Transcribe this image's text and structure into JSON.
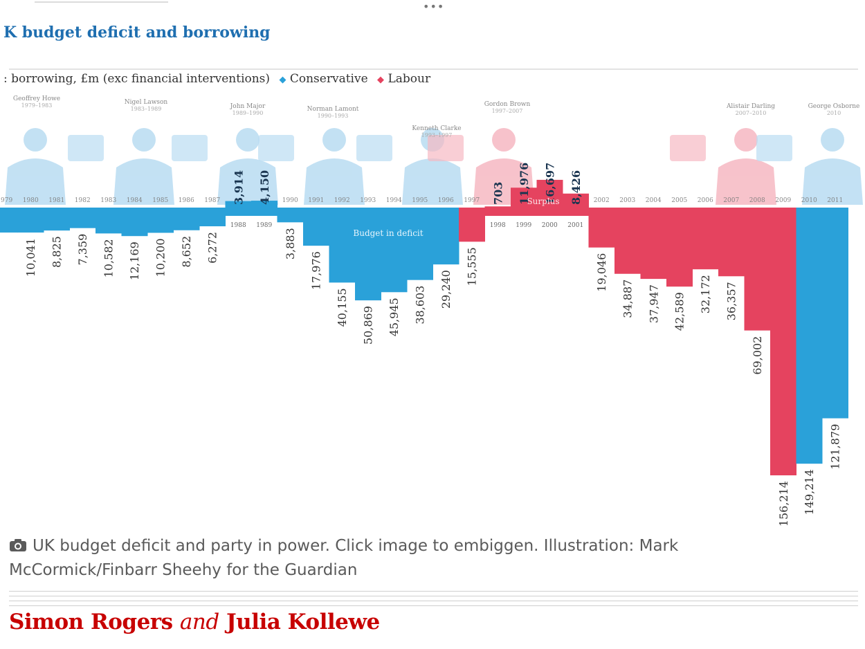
{
  "chart_data": {
    "type": "bar",
    "title": "K budget deficit and borrowing",
    "subtitle": ": borrowing, £m (exc financial interventions)",
    "legend": [
      {
        "name": "Conservative",
        "color": "#2aa1d9"
      },
      {
        "name": "Labour",
        "color": "#e5435f"
      }
    ],
    "annotations": [
      "Budget in deficit",
      "Surplus"
    ],
    "ministers": [
      {
        "name": "Geoffrey Howe",
        "years": "1979–1983"
      },
      {
        "name": "Nigel Lawson",
        "years": "1983–1989"
      },
      {
        "name": "John Major",
        "years": "1989–1990"
      },
      {
        "name": "Norman Lamont",
        "years": "1990–1993"
      },
      {
        "name": "Kenneth Clarke",
        "years": "1993–1997"
      },
      {
        "name": "Gordon Brown",
        "years": "1997–2007"
      },
      {
        "name": "Alistair Darling",
        "years": "2007–2010"
      },
      {
        "name": "George Osborne",
        "years": "2010"
      }
    ],
    "bars": [
      {
        "year": "1979",
        "value": -10041,
        "party": "Conservative"
      },
      {
        "year": "1980",
        "value": -10041,
        "label": "10,041",
        "party": "Conservative"
      },
      {
        "year": "1981",
        "value": -8825,
        "label": "8,825",
        "party": "Conservative"
      },
      {
        "year": "1982",
        "value": -7359,
        "label": "7,359",
        "party": "Conservative"
      },
      {
        "year": "1983",
        "value": -10582,
        "label": "10,582",
        "party": "Conservative"
      },
      {
        "year": "1984",
        "value": -12169,
        "label": "12,169",
        "party": "Conservative"
      },
      {
        "year": "1985",
        "value": -10200,
        "label": "10,200",
        "party": "Conservative"
      },
      {
        "year": "1986",
        "value": -8652,
        "label": "8,652",
        "party": "Conservative"
      },
      {
        "year": "1987",
        "value": -6272,
        "label": "6,272",
        "party": "Conservative"
      },
      {
        "year": "1988",
        "value": 3914,
        "label": "3,914",
        "party": "Conservative"
      },
      {
        "year": "1989",
        "value": 4150,
        "label": "4,150",
        "party": "Conservative"
      },
      {
        "year": "1990",
        "value": -3883,
        "label": "3,883",
        "party": "Conservative"
      },
      {
        "year": "1991",
        "value": -17976,
        "label": "17,976",
        "party": "Conservative"
      },
      {
        "year": "1992",
        "value": -40155,
        "label": "40,155",
        "party": "Conservative"
      },
      {
        "year": "1993",
        "value": -50869,
        "label": "50,869",
        "party": "Conservative"
      },
      {
        "year": "1994",
        "value": -45945,
        "label": "45,945",
        "party": "Conservative"
      },
      {
        "year": "1995",
        "value": -38603,
        "label": "38,603",
        "party": "Conservative"
      },
      {
        "year": "1996",
        "value": -29240,
        "label": "29,240",
        "party": "Conservative"
      },
      {
        "year": "1997",
        "value": -15555,
        "label": "15,555",
        "party": "Labour"
      },
      {
        "year": "1998",
        "value": 703,
        "label": "703",
        "party": "Labour"
      },
      {
        "year": "1999",
        "value": 11976,
        "label": "11,976",
        "party": "Labour"
      },
      {
        "year": "2000",
        "value": 16697,
        "label": "16,697",
        "party": "Labour"
      },
      {
        "year": "2001",
        "value": 8426,
        "label": "8,426",
        "party": "Labour"
      },
      {
        "year": "2002",
        "value": -19046,
        "label": "19,046",
        "party": "Labour"
      },
      {
        "year": "2003",
        "value": -34887,
        "label": "34,887",
        "party": "Labour"
      },
      {
        "year": "2004",
        "value": -37947,
        "label": "37,947",
        "party": "Labour"
      },
      {
        "year": "2005",
        "value": -42589,
        "label": "42,589",
        "party": "Labour"
      },
      {
        "year": "2006",
        "value": -32172,
        "label": "32,172",
        "party": "Labour"
      },
      {
        "year": "2007",
        "value": -36357,
        "label": "36,357",
        "party": "Labour"
      },
      {
        "year": "2008",
        "value": -69002,
        "label": "69,002",
        "party": "Labour"
      },
      {
        "year": "2009",
        "value": -156214,
        "label": "156,214",
        "party": "Labour"
      },
      {
        "year": "2010",
        "value": -149214,
        "label": "149,214",
        "party": "Conservative"
      },
      {
        "year": "2011",
        "value": -121879,
        "label": "121,879",
        "party": "Conservative"
      }
    ],
    "ylim": [
      -160000,
      35000
    ]
  },
  "caption": "UK budget deficit and party in power. Click image to embiggen. Illustration: Mark McCormick/Finbarr Sheehy for the Guardian",
  "byline": {
    "author1": "Simon Rogers",
    "and": "and",
    "author2": "Julia Kollewe"
  },
  "colors": {
    "conservative": "#2aa1d9",
    "labour": "#e5435f",
    "byline": "#c70000",
    "title": "#1f6fb0"
  },
  "icons": {
    "caption": "camera-icon",
    "more": "more-dots-icon"
  }
}
